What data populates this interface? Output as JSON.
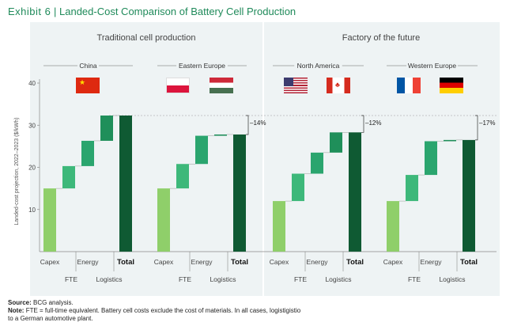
{
  "exhibit": {
    "label": "Exhibit 6",
    "title": "Landed-Cost Comparison of Battery Cell Production"
  },
  "footnotes": {
    "source_label": "Source:",
    "source_text": "BCG analysis.",
    "note_label": "Note:",
    "note_text": "FTE = full-time equivalent. Battery cell costs exclude the cost of materials. In all cases, logistigistio",
    "note_text_2": "to a German automotive plant."
  },
  "colors": {
    "capex": "#8fcf6a",
    "fte": "#3db87a",
    "energy": "#2aa56e",
    "logistics": "#1f8f5a",
    "total": "#0f5a33",
    "panel_bg": "#eef3f4",
    "title": "#1f8a5a"
  },
  "chart_data": {
    "type": "bar",
    "subtype": "waterfall",
    "ylabel": "Landed-cost projection, 2022–2023 ($/kWh)",
    "ylim": [
      0,
      40
    ],
    "yticks": [
      10,
      20,
      30,
      40
    ],
    "step_labels": [
      "Capex",
      "FTE",
      "Energy",
      "Logistics",
      "Total"
    ],
    "groups": [
      {
        "label": "Traditional cell production",
        "regions": [
          "China",
          "Eastern Europe"
        ]
      },
      {
        "label": "Factory of the future",
        "regions": [
          "North America",
          "Western Europe"
        ]
      }
    ],
    "reference_line": 32.3,
    "countries": [
      {
        "region": "China",
        "flags": [
          "china-flag"
        ],
        "steps": [
          15.0,
          5.3,
          6.0,
          6.0
        ],
        "total": 32.3,
        "change": ""
      },
      {
        "region": "Eastern Europe",
        "flags": [
          "poland-flag",
          "hungary-flag"
        ],
        "steps": [
          15.0,
          5.8,
          6.7,
          0.3
        ],
        "total": 27.8,
        "change": "–14%"
      },
      {
        "region": "North America",
        "flags": [
          "usa-flag",
          "canada-flag"
        ],
        "steps": [
          12.0,
          6.5,
          5.0,
          4.8
        ],
        "total": 28.3,
        "change": "–12%"
      },
      {
        "region": "Western Europe",
        "flags": [
          "france-flag",
          "germany-flag"
        ],
        "steps": [
          12.0,
          6.2,
          8.0,
          0.3
        ],
        "total": 26.5,
        "change": "–17%"
      }
    ]
  }
}
